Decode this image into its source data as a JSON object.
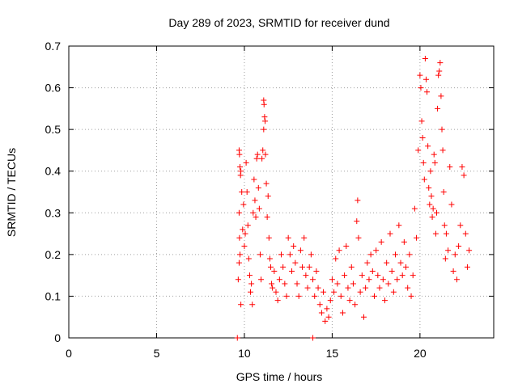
{
  "chart_data": {
    "type": "scatter",
    "title": "Day 289 of 2023, SRMTID for receiver dund",
    "xlabel": "GPS time / hours",
    "ylabel": "SRMTID / TECUs",
    "xlim": [
      0,
      24.2
    ],
    "ylim": [
      0,
      0.7
    ],
    "xticks": [
      0,
      5,
      10,
      15,
      20
    ],
    "xtick_labels": [
      "0",
      "5",
      "10",
      "15",
      "20"
    ],
    "yticks": [
      0,
      0.1,
      0.2,
      0.3,
      0.4,
      0.5,
      0.6,
      0.7
    ],
    "ytick_labels": [
      "0",
      "0.1",
      "0.2",
      "0.3",
      "0.4",
      "0.5",
      "0.6",
      "0.7"
    ],
    "grid": true,
    "marker": "+",
    "color": "#ff0000",
    "series": [
      {
        "name": "SRMTID",
        "points": [
          [
            9.6,
            0.0
          ],
          [
            13.9,
            0.0
          ],
          [
            9.65,
            0.14
          ],
          [
            9.7,
            0.45
          ],
          [
            9.72,
            0.44
          ],
          [
            9.75,
            0.41
          ],
          [
            9.78,
            0.39
          ],
          [
            9.8,
            0.4
          ],
          [
            9.7,
            0.3
          ],
          [
            9.72,
            0.24
          ],
          [
            9.75,
            0.2
          ],
          [
            9.7,
            0.18
          ],
          [
            9.8,
            0.08
          ],
          [
            9.85,
            0.35
          ],
          [
            9.9,
            0.26
          ],
          [
            9.95,
            0.32
          ],
          [
            10.0,
            0.22
          ],
          [
            10.05,
            0.25
          ],
          [
            10.1,
            0.42
          ],
          [
            10.15,
            0.35
          ],
          [
            10.2,
            0.27
          ],
          [
            10.25,
            0.19
          ],
          [
            10.3,
            0.15
          ],
          [
            10.35,
            0.11
          ],
          [
            10.4,
            0.13
          ],
          [
            10.45,
            0.08
          ],
          [
            10.5,
            0.3
          ],
          [
            10.55,
            0.38
          ],
          [
            10.6,
            0.33
          ],
          [
            10.65,
            0.29
          ],
          [
            10.7,
            0.43
          ],
          [
            10.75,
            0.44
          ],
          [
            10.8,
            0.36
          ],
          [
            10.85,
            0.31
          ],
          [
            10.9,
            0.2
          ],
          [
            10.95,
            0.14
          ],
          [
            11.0,
            0.43
          ],
          [
            11.05,
            0.45
          ],
          [
            11.1,
            0.57
          ],
          [
            11.12,
            0.56
          ],
          [
            11.15,
            0.53
          ],
          [
            11.18,
            0.52
          ],
          [
            11.1,
            0.5
          ],
          [
            11.2,
            0.44
          ],
          [
            11.25,
            0.37
          ],
          [
            11.3,
            0.29
          ],
          [
            11.35,
            0.34
          ],
          [
            11.4,
            0.24
          ],
          [
            11.45,
            0.19
          ],
          [
            11.5,
            0.17
          ],
          [
            11.55,
            0.13
          ],
          [
            11.6,
            0.12
          ],
          [
            11.7,
            0.16
          ],
          [
            11.8,
            0.11
          ],
          [
            11.9,
            0.09
          ],
          [
            12.0,
            0.14
          ],
          [
            12.1,
            0.2
          ],
          [
            12.2,
            0.17
          ],
          [
            12.3,
            0.13
          ],
          [
            12.4,
            0.1
          ],
          [
            12.5,
            0.24
          ],
          [
            12.6,
            0.2
          ],
          [
            12.7,
            0.16
          ],
          [
            12.8,
            0.22
          ],
          [
            12.9,
            0.18
          ],
          [
            13.0,
            0.13
          ],
          [
            13.1,
            0.1
          ],
          [
            13.2,
            0.21
          ],
          [
            13.3,
            0.17
          ],
          [
            13.4,
            0.24
          ],
          [
            13.5,
            0.15
          ],
          [
            13.6,
            0.12
          ],
          [
            13.7,
            0.17
          ],
          [
            13.8,
            0.2
          ],
          [
            13.9,
            0.14
          ],
          [
            14.0,
            0.1
          ],
          [
            14.1,
            0.16
          ],
          [
            14.2,
            0.12
          ],
          [
            14.3,
            0.08
          ],
          [
            14.4,
            0.06
          ],
          [
            14.5,
            0.11
          ],
          [
            14.6,
            0.04
          ],
          [
            14.7,
            0.07
          ],
          [
            14.8,
            0.05
          ],
          [
            14.9,
            0.09
          ],
          [
            15.0,
            0.14
          ],
          [
            15.1,
            0.11
          ],
          [
            15.2,
            0.19
          ],
          [
            15.3,
            0.13
          ],
          [
            15.4,
            0.21
          ],
          [
            15.5,
            0.1
          ],
          [
            15.6,
            0.06
          ],
          [
            15.7,
            0.15
          ],
          [
            15.8,
            0.22
          ],
          [
            15.9,
            0.12
          ],
          [
            16.0,
            0.09
          ],
          [
            16.1,
            0.17
          ],
          [
            16.2,
            0.13
          ],
          [
            16.3,
            0.08
          ],
          [
            16.4,
            0.28
          ],
          [
            16.45,
            0.33
          ],
          [
            16.5,
            0.24
          ],
          [
            16.6,
            0.11
          ],
          [
            16.7,
            0.15
          ],
          [
            16.8,
            0.05
          ],
          [
            16.9,
            0.12
          ],
          [
            17.0,
            0.18
          ],
          [
            17.1,
            0.14
          ],
          [
            17.2,
            0.2
          ],
          [
            17.3,
            0.16
          ],
          [
            17.4,
            0.1
          ],
          [
            17.5,
            0.21
          ],
          [
            17.6,
            0.15
          ],
          [
            17.7,
            0.12
          ],
          [
            17.8,
            0.23
          ],
          [
            17.9,
            0.14
          ],
          [
            18.0,
            0.09
          ],
          [
            18.1,
            0.18
          ],
          [
            18.2,
            0.13
          ],
          [
            18.3,
            0.25
          ],
          [
            18.4,
            0.16
          ],
          [
            18.5,
            0.11
          ],
          [
            18.6,
            0.2
          ],
          [
            18.7,
            0.14
          ],
          [
            18.8,
            0.27
          ],
          [
            18.9,
            0.18
          ],
          [
            19.0,
            0.15
          ],
          [
            19.1,
            0.23
          ],
          [
            19.2,
            0.17
          ],
          [
            19.3,
            0.12
          ],
          [
            19.4,
            0.2
          ],
          [
            19.5,
            0.1
          ],
          [
            19.6,
            0.15
          ],
          [
            19.7,
            0.31
          ],
          [
            19.8,
            0.24
          ],
          [
            19.9,
            0.45
          ],
          [
            20.0,
            0.63
          ],
          [
            20.05,
            0.6
          ],
          [
            20.1,
            0.52
          ],
          [
            20.15,
            0.48
          ],
          [
            20.2,
            0.42
          ],
          [
            20.25,
            0.38
          ],
          [
            20.3,
            0.67
          ],
          [
            20.35,
            0.62
          ],
          [
            20.4,
            0.59
          ],
          [
            20.45,
            0.46
          ],
          [
            20.5,
            0.36
          ],
          [
            20.55,
            0.32
          ],
          [
            20.6,
            0.4
          ],
          [
            20.65,
            0.34
          ],
          [
            20.7,
            0.29
          ],
          [
            20.75,
            0.31
          ],
          [
            20.8,
            0.44
          ],
          [
            20.85,
            0.42
          ],
          [
            20.9,
            0.25
          ],
          [
            20.95,
            0.3
          ],
          [
            21.0,
            0.55
          ],
          [
            21.05,
            0.63
          ],
          [
            21.1,
            0.64
          ],
          [
            21.15,
            0.66
          ],
          [
            21.2,
            0.58
          ],
          [
            21.25,
            0.5
          ],
          [
            21.3,
            0.45
          ],
          [
            21.35,
            0.35
          ],
          [
            21.4,
            0.27
          ],
          [
            21.45,
            0.19
          ],
          [
            21.5,
            0.25
          ],
          [
            21.6,
            0.21
          ],
          [
            21.7,
            0.41
          ],
          [
            21.8,
            0.32
          ],
          [
            21.9,
            0.16
          ],
          [
            22.0,
            0.2
          ],
          [
            22.1,
            0.14
          ],
          [
            22.2,
            0.22
          ],
          [
            22.3,
            0.27
          ],
          [
            22.4,
            0.41
          ],
          [
            22.5,
            0.39
          ],
          [
            22.6,
            0.25
          ],
          [
            22.7,
            0.17
          ],
          [
            22.8,
            0.21
          ]
        ]
      }
    ]
  }
}
